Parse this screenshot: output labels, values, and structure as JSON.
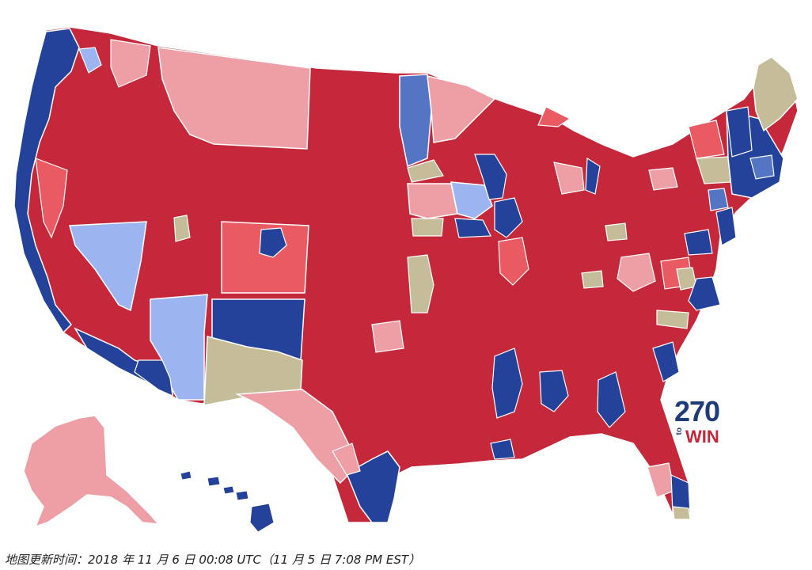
{
  "logo": {
    "number": "270",
    "to": "to",
    "win": "WIN"
  },
  "caption": "地图更新时间：2018 年 11 月 6 日 00:08 UTC（11 月 5 日 7:08 PM EST）",
  "colors": {
    "solid_rep": "#c4283a",
    "leans_rep": "#e95a62",
    "likely_rep": "#ee9fa6",
    "solid_dem": "#24429a",
    "likely_dem": "#5474c4",
    "leans_dem": "#9cb4f0",
    "tossup": "#c5bd99",
    "border": "#ffffff"
  }
}
